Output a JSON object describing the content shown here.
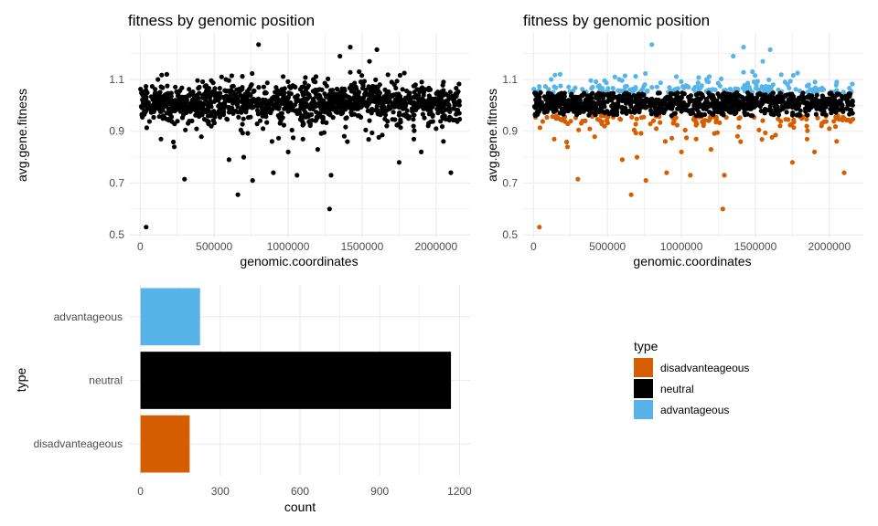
{
  "colors": {
    "disadvantageous": "#D55E00",
    "neutral": "#000000",
    "advantageous": "#56B4E9",
    "grid": "#ebebeb",
    "tick_text": "#4d4d4d"
  },
  "chart_data": [
    {
      "id": "scatter-plain",
      "type": "scatter",
      "title": "fitness by genomic position",
      "xlabel": "genomic.coordinates",
      "ylabel": "avg.gene.fitness",
      "xlim": [
        -70000,
        2230000
      ],
      "ylim": [
        0.49,
        1.28
      ],
      "xticks": [
        0,
        500000,
        1000000,
        1500000,
        2000000
      ],
      "xtick_labels": [
        "0",
        "500000",
        "1000000",
        "1500000",
        "2000000"
      ],
      "yticks": [
        0.5,
        0.7,
        0.9,
        1.1
      ],
      "ytick_labels": [
        "0.5",
        "0.7",
        "0.9",
        "1.1"
      ],
      "colored_by_type": false,
      "grid": true,
      "points": [
        [
          40000,
          0.53
        ],
        [
          300000,
          0.715
        ],
        [
          660000,
          0.655
        ],
        [
          800000,
          1.235
        ],
        [
          1280000,
          0.6
        ],
        [
          1420000,
          1.225
        ],
        [
          1600000,
          1.215
        ],
        [
          1290000,
          0.73
        ],
        [
          1060000,
          0.73
        ],
        [
          760000,
          0.71
        ],
        [
          900000,
          0.74
        ],
        [
          550000,
          1.11
        ],
        [
          580000,
          1.1
        ],
        [
          230000,
          0.84
        ],
        [
          140000,
          0.87
        ],
        [
          600000,
          0.79
        ],
        [
          700000,
          0.8
        ],
        [
          1000000,
          0.82
        ],
        [
          1100000,
          0.87
        ],
        [
          1200000,
          0.83
        ],
        [
          1350000,
          1.19
        ],
        [
          1480000,
          1.13
        ],
        [
          1550000,
          1.17
        ],
        [
          1700000,
          1.09
        ],
        [
          1900000,
          0.82
        ],
        [
          1750000,
          0.78
        ],
        [
          2100000,
          0.74
        ],
        [
          1850000,
          0.87
        ],
        [
          2000000,
          0.91
        ],
        [
          480000,
          0.92
        ],
        [
          350000,
          0.94
        ],
        [
          120000,
          1.1
        ],
        [
          180000,
          1.12
        ],
        [
          400000,
          1.07
        ],
        [
          1170000,
          1.1
        ],
        [
          1400000,
          0.86
        ],
        [
          950000,
          0.94
        ],
        [
          830000,
          0.91
        ],
        [
          1620000,
          1.08
        ],
        [
          2050000,
          1.09
        ]
      ],
      "band_model": {
        "n_points": 1300,
        "x_range": [
          0,
          2160000
        ],
        "center": 1.01,
        "spread": 0.035
      }
    },
    {
      "id": "scatter-colored",
      "type": "scatter",
      "title": "fitness by genomic position",
      "xlabel": "genomic.coordinates",
      "ylabel": "avg.gene.fitness",
      "xlim": [
        -70000,
        2230000
      ],
      "ylim": [
        0.49,
        1.28
      ],
      "xticks": [
        0,
        500000,
        1000000,
        1500000,
        2000000
      ],
      "xtick_labels": [
        "0",
        "500000",
        "1000000",
        "1500000",
        "2000000"
      ],
      "yticks": [
        0.5,
        0.7,
        0.9,
        1.1
      ],
      "ytick_labels": [
        "0.5",
        "0.7",
        "0.9",
        "1.1"
      ],
      "colored_by_type": true,
      "thresholds": [
        0.96,
        1.05
      ],
      "grid": true,
      "points": [
        [
          40000,
          0.53
        ],
        [
          300000,
          0.715
        ],
        [
          660000,
          0.655
        ],
        [
          800000,
          1.235
        ],
        [
          1280000,
          0.6
        ],
        [
          1420000,
          1.225
        ],
        [
          1600000,
          1.215
        ],
        [
          1290000,
          0.73
        ],
        [
          1060000,
          0.73
        ],
        [
          760000,
          0.71
        ],
        [
          900000,
          0.74
        ],
        [
          550000,
          1.11
        ],
        [
          580000,
          1.1
        ],
        [
          230000,
          0.84
        ],
        [
          140000,
          0.87
        ],
        [
          600000,
          0.79
        ],
        [
          700000,
          0.8
        ],
        [
          1000000,
          0.82
        ],
        [
          1100000,
          0.87
        ],
        [
          1200000,
          0.83
        ],
        [
          1350000,
          1.19
        ],
        [
          1480000,
          1.13
        ],
        [
          1550000,
          1.17
        ],
        [
          1700000,
          1.09
        ],
        [
          1900000,
          0.82
        ],
        [
          1750000,
          0.78
        ],
        [
          2100000,
          0.74
        ],
        [
          1850000,
          0.87
        ],
        [
          2000000,
          0.91
        ],
        [
          480000,
          0.92
        ],
        [
          350000,
          0.94
        ],
        [
          120000,
          1.1
        ],
        [
          180000,
          1.12
        ],
        [
          400000,
          1.07
        ],
        [
          1170000,
          1.1
        ],
        [
          1400000,
          0.86
        ],
        [
          950000,
          0.94
        ],
        [
          830000,
          0.91
        ],
        [
          1620000,
          1.08
        ],
        [
          2050000,
          1.09
        ]
      ],
      "band_model": {
        "n_points": 1300,
        "x_range": [
          0,
          2160000
        ],
        "center": 1.01,
        "spread": 0.035
      }
    },
    {
      "id": "bar-counts",
      "type": "bar",
      "orientation": "horizontal",
      "xlabel": "count",
      "ylabel": "type",
      "categories": [
        "advantageous",
        "neutral",
        "disadvanteageous"
      ],
      "values": [
        224,
        1168,
        185
      ],
      "bar_colors": [
        "#56B4E9",
        "#000000",
        "#D55E00"
      ],
      "xlim": [
        -40,
        1240
      ],
      "xticks": [
        0,
        300,
        600,
        900,
        1200
      ],
      "xtick_labels": [
        "0",
        "300",
        "600",
        "900",
        "1200"
      ],
      "grid": true
    }
  ],
  "legend": {
    "title": "type",
    "placement": "right",
    "items": [
      {
        "label": "disadvanteageous",
        "color": "#D55E00"
      },
      {
        "label": "neutral",
        "color": "#000000"
      },
      {
        "label": "advantageous",
        "color": "#56B4E9"
      }
    ]
  }
}
